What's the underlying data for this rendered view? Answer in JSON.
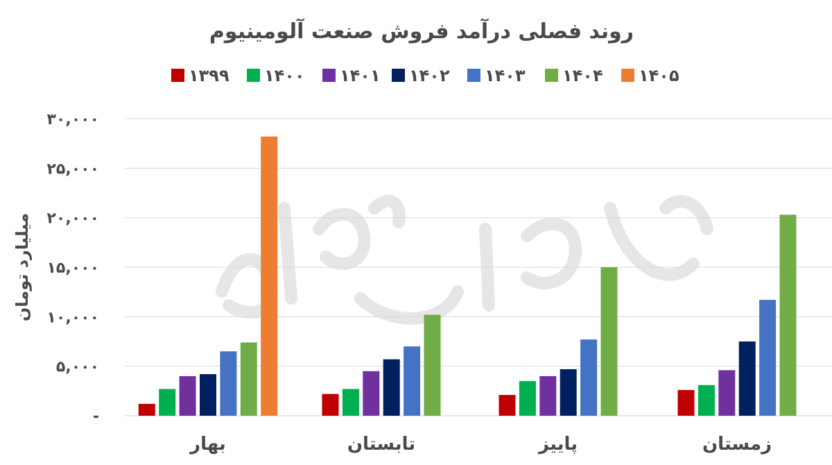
{
  "chart_data": {
    "type": "bar",
    "title": "روند فصلی درآمد فروش صنعت آلومینیوم",
    "ylabel": "میلیارد تومان",
    "xlabel": "",
    "ylim": [
      0,
      30000
    ],
    "y_ticks": [
      {
        "value": 0,
        "label": "-"
      },
      {
        "value": 5000,
        "label": "۵,۰۰۰"
      },
      {
        "value": 10000,
        "label": "۱۰,۰۰۰"
      },
      {
        "value": 15000,
        "label": "۱۵,۰۰۰"
      },
      {
        "value": 20000,
        "label": "۲۰,۰۰۰"
      },
      {
        "value": 25000,
        "label": "۲۵,۰۰۰"
      },
      {
        "value": 30000,
        "label": "۳۰,۰۰۰"
      }
    ],
    "grid": true,
    "legend_position": "top",
    "categories": [
      "بهار",
      "تابستان",
      "پاییز",
      "زمستان"
    ],
    "series": [
      {
        "name": "۱۳۹۹",
        "color": "#c00000",
        "values": [
          1200,
          2200,
          2100,
          2600
        ]
      },
      {
        "name": "۱۴۰۰",
        "color": "#00b050",
        "values": [
          2700,
          2700,
          3500,
          3100
        ]
      },
      {
        "name": "۱۴۰۱",
        "color": "#7030a0",
        "values": [
          4000,
          4500,
          4000,
          4600
        ]
      },
      {
        "name": "۱۴۰۲",
        "color": "#002060",
        "values": [
          4200,
          5700,
          4700,
          7500
        ]
      },
      {
        "name": "۱۴۰۳",
        "color": "#4472c4",
        "values": [
          6500,
          7000,
          7700,
          11700
        ]
      },
      {
        "name": "۱۴۰۴",
        "color": "#70ad47",
        "values": [
          7400,
          10200,
          15000,
          20300
        ]
      },
      {
        "name": "۱۴۰۵",
        "color": "#ed7d31",
        "values": [
          28200,
          null,
          null,
          null
        ]
      }
    ]
  }
}
